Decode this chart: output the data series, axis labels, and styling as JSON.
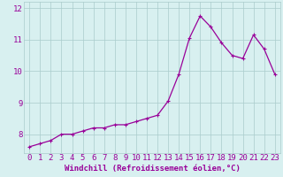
{
  "x": [
    0,
    1,
    2,
    3,
    4,
    5,
    6,
    7,
    8,
    9,
    10,
    11,
    12,
    13,
    14,
    15,
    16,
    17,
    18,
    19,
    20,
    21,
    22,
    23
  ],
  "y": [
    7.6,
    7.7,
    7.8,
    8.0,
    8.0,
    8.1,
    8.2,
    8.2,
    8.3,
    8.3,
    8.4,
    8.5,
    8.6,
    9.05,
    9.9,
    11.05,
    11.75,
    11.4,
    10.9,
    10.5,
    10.4,
    11.15,
    10.7,
    9.9
  ],
  "line_color": "#990099",
  "marker": "+",
  "marker_size": 3,
  "bg_color": "#d8f0f0",
  "grid_color": "#aacccc",
  "xlabel": "Windchill (Refroidissement éolien,°C)",
  "ylim": [
    7.4,
    12.2
  ],
  "xlim": [
    -0.5,
    23.5
  ],
  "yticks": [
    8,
    9,
    10,
    11,
    12
  ],
  "xticks": [
    0,
    1,
    2,
    3,
    4,
    5,
    6,
    7,
    8,
    9,
    10,
    11,
    12,
    13,
    14,
    15,
    16,
    17,
    18,
    19,
    20,
    21,
    22,
    23
  ],
  "xlabel_fontsize": 6.5,
  "tick_fontsize": 6.5,
  "line_width": 0.9
}
